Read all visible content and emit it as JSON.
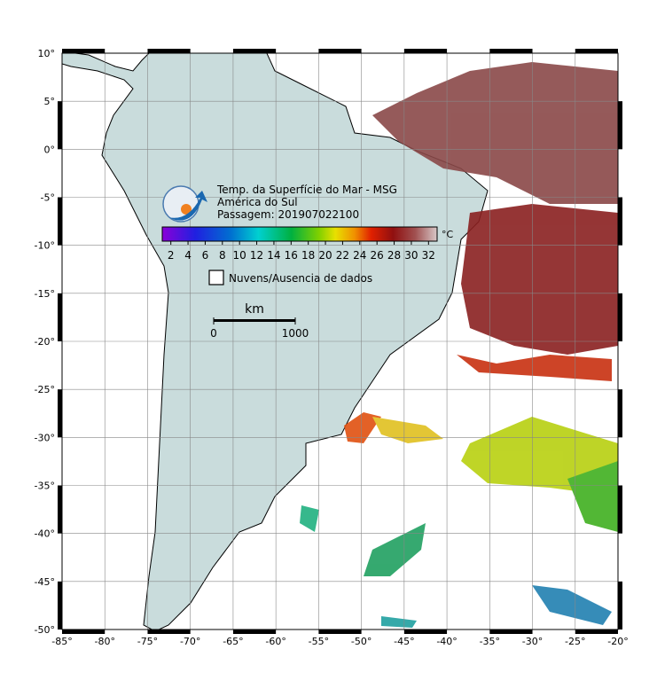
{
  "map": {
    "title": [
      "Temp. da Superfície do Mar - MSG",
      "América do Sul",
      "Passagem: 201907022100"
    ],
    "lonlim": [
      -85,
      -20
    ],
    "latlim": [
      -50,
      10
    ],
    "grid": true,
    "lon_ticks": [
      {
        "value": -85,
        "label": "-85°"
      },
      {
        "value": -80,
        "label": "-80°"
      },
      {
        "value": -75,
        "label": "-75°"
      },
      {
        "value": -70,
        "label": "-70°"
      },
      {
        "value": -65,
        "label": "-65°"
      },
      {
        "value": -60,
        "label": "-60°"
      },
      {
        "value": -55,
        "label": "-55°"
      },
      {
        "value": -50,
        "label": "-50°"
      },
      {
        "value": -45,
        "label": "-45°"
      },
      {
        "value": -40,
        "label": "-40°"
      },
      {
        "value": -35,
        "label": "-35°"
      },
      {
        "value": -30,
        "label": "-30°"
      },
      {
        "value": -25,
        "label": "-25°"
      },
      {
        "value": -20,
        "label": "-20°"
      }
    ],
    "lat_ticks": [
      {
        "value": 10,
        "label": "10°"
      },
      {
        "value": 5,
        "label": "5°"
      },
      {
        "value": 0,
        "label": "0°"
      },
      {
        "value": -5,
        "label": "-5°"
      },
      {
        "value": -10,
        "label": "-10°"
      },
      {
        "value": -15,
        "label": "-15°"
      },
      {
        "value": -20,
        "label": "-20°"
      },
      {
        "value": -25,
        "label": "-25°"
      },
      {
        "value": -30,
        "label": "-30°"
      },
      {
        "value": -35,
        "label": "-35°"
      },
      {
        "value": -40,
        "label": "-40°"
      },
      {
        "value": -45,
        "label": "-45°"
      },
      {
        "value": -50,
        "label": "-50°"
      }
    ],
    "colorbar": {
      "unit": "°C",
      "lim": [
        1,
        33
      ],
      "ticks": [
        2,
        4,
        6,
        8,
        10,
        12,
        14,
        16,
        18,
        20,
        22,
        24,
        26,
        28,
        30,
        32
      ]
    },
    "legend": "Nuvens/Ausencia de dados",
    "scale_bar": {
      "unit": "km",
      "ticks": [
        0,
        1000
      ]
    }
  }
}
